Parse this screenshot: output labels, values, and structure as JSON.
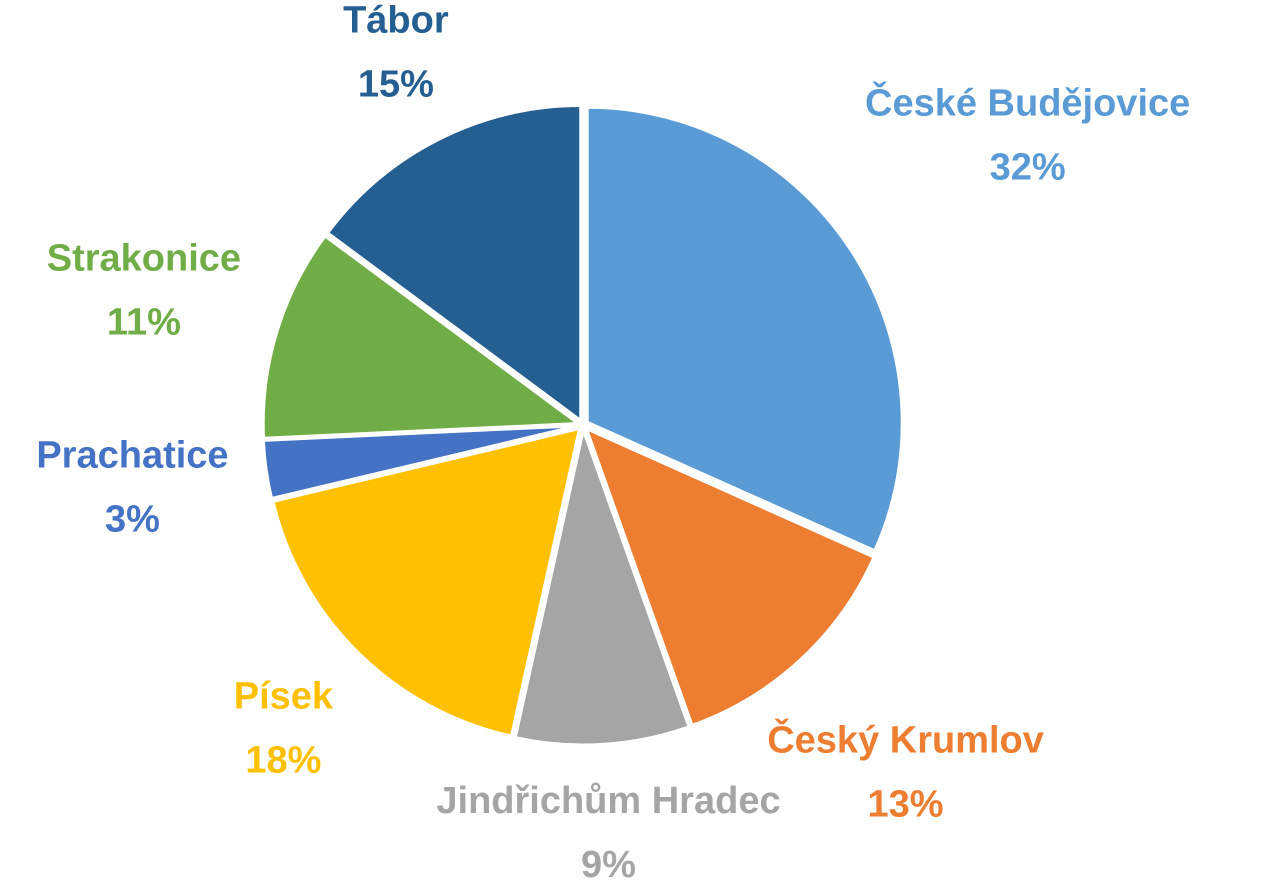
{
  "chart_data": {
    "type": "pie",
    "categories": [
      "České Budějovice",
      "Český Krumlov",
      "Jindřichům Hradec",
      "Písek",
      "Prachatice",
      "Strakonice",
      "Tábor"
    ],
    "values": [
      32,
      13,
      9,
      18,
      3,
      11,
      15
    ],
    "value_labels": [
      "32%",
      "13%",
      "9%",
      "18%",
      "3%",
      "11%",
      "15%"
    ],
    "colors": [
      "#5b9bd5",
      "#ed7d31",
      "#a5a5a5",
      "#ffc000",
      "#4472c4",
      "#70ad47",
      "#255e91"
    ]
  }
}
